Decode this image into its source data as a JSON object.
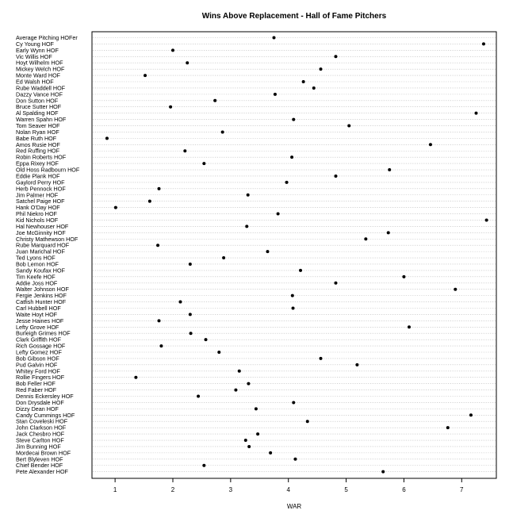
{
  "chart_data": {
    "type": "scatter",
    "title": "Wins Above Replacement - Hall of Fame Pitchers",
    "xlabel": "WAR",
    "ylabel": "",
    "xlim": [
      0.6,
      7.6
    ],
    "xticks": [
      1,
      2,
      3,
      4,
      5,
      6,
      7
    ],
    "grid": true,
    "categories": [
      "Average Pitching HOFer",
      "Cy Young HOF",
      "Early Wynn HOF",
      "Vic Willis HOF",
      "Hoyt Wilhelm HOF",
      "Mickey Welch HOF",
      "Monte Ward HOF",
      "Ed Walsh HOF",
      "Rube Waddell HOF",
      "Dazzy Vance HOF",
      "Don Sutton HOF",
      "Bruce Sutter HOF",
      "Al Spalding HOF",
      "Warren Spahn HOF",
      "Tom Seaver HOF",
      "Nolan Ryan HOF",
      "Babe Ruth HOF",
      "Amos Rusie HOF",
      "Red Ruffing HOF",
      "Robin Roberts HOF",
      "Eppa Rixey HOF",
      "Old Hoss Radbourn HOF",
      "Eddie Plank HOF",
      "Gaylord Perry HOF",
      "Herb Pennock HOF",
      "Jim Palmer HOF",
      "Satchel Paige HOF",
      "Hank O'Day HOF",
      "Phil Niekro HOF",
      "Kid Nichols HOF",
      "Hal Newhouser HOF",
      "Joe McGinnity HOF",
      "Christy Mathewson HOF",
      "Rube Marquard HOF",
      "Juan Marichal HOF",
      "Ted Lyons HOF",
      "Bob Lemon HOF",
      "Sandy Koufax HOF",
      "Tim Keefe HOF",
      "Addie Joss HOF",
      "Walter Johnson HOF",
      "Fergie Jenkins HOF",
      "Catfish Hunter HOF",
      "Carl Hubbell HOF",
      "Waite Hoyt HOF",
      "Jesse Haines HOF",
      "Lefty Grove HOF",
      "Burleigh Grimes HOF",
      "Clark Griffith HOF",
      "Rich Gossage HOF",
      "Lefty Gomez HOF",
      "Bob Gibson HOF",
      "Pud Galvin HOF",
      "Whitey Ford HOF",
      "Rollie Fingers HOF",
      "Bob Feller HOF",
      "Red Faber HOF",
      "Dennis Eckersley HOF",
      "Don Drysdale HOF",
      "Dizzy Dean HOF",
      "Candy Cummings HOF",
      "Stan Coveleski HOF",
      "John Clarkson HOF",
      "Jack Chesbro HOF",
      "Steve Carlton HOF",
      "Jim Bunning HOF",
      "Mordecai Brown HOF",
      "Bert Blyleven HOF",
      "Chief Bender HOF",
      "Pete Alexander HOF"
    ],
    "values": [
      3.75,
      7.38,
      2.0,
      4.82,
      2.25,
      4.56,
      1.52,
      4.26,
      4.44,
      3.77,
      2.73,
      1.96,
      7.25,
      4.09,
      5.05,
      2.86,
      0.86,
      6.46,
      2.21,
      4.06,
      2.54,
      5.75,
      4.82,
      3.97,
      1.76,
      3.3,
      1.6,
      1.01,
      3.82,
      7.43,
      3.28,
      5.73,
      5.34,
      1.74,
      3.64,
      2.88,
      2.3,
      4.21,
      6.0,
      4.82,
      6.89,
      4.07,
      2.13,
      4.08,
      2.3,
      1.76,
      6.09,
      2.31,
      2.57,
      1.8,
      2.8,
      4.56,
      5.19,
      3.15,
      1.36,
      3.31,
      3.09,
      2.44,
      4.09,
      3.44,
      7.16,
      4.33,
      6.76,
      3.47,
      3.26,
      3.32,
      3.69,
      4.12,
      2.54,
      5.64
    ]
  }
}
